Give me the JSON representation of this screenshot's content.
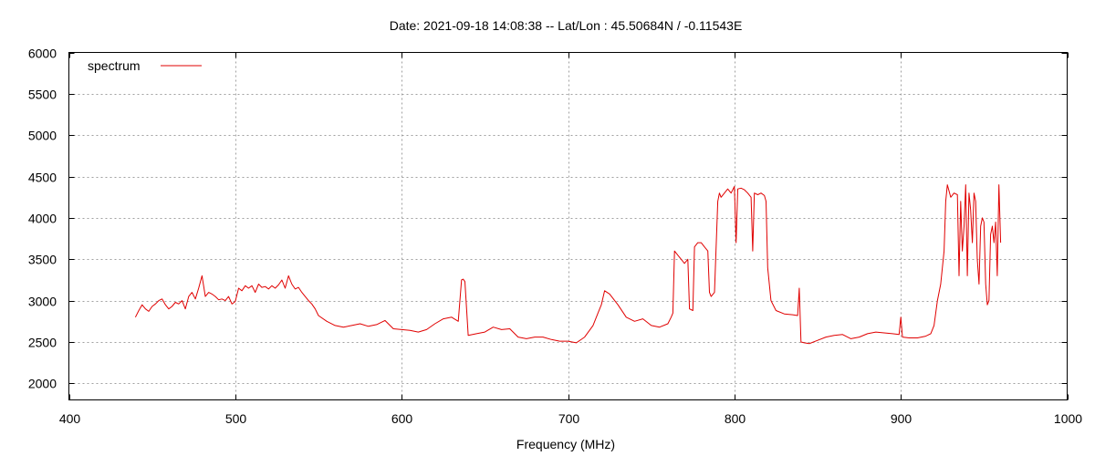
{
  "chart_data": {
    "type": "line",
    "title": "Date: 2021-09-18 14:08:38  --  Lat/Lon : 45.50684N / -0.11543E",
    "xlabel": "Frequency (MHz)",
    "ylabel": "",
    "xlim": [
      400,
      1000
    ],
    "ylim": [
      1800,
      6000
    ],
    "x_ticks": [
      400,
      500,
      600,
      700,
      800,
      900,
      1000
    ],
    "y_ticks": [
      2000,
      2500,
      3000,
      3500,
      4000,
      4500,
      5000,
      5500,
      6000
    ],
    "grid": true,
    "legend_position": "top-left",
    "series": [
      {
        "name": "spectrum",
        "color": "#e00000",
        "x": [
          440,
          442,
          444,
          446,
          448,
          450,
          452,
          454,
          456,
          458,
          460,
          462,
          464,
          466,
          468,
          470,
          472,
          474,
          476,
          478,
          480,
          482,
          484,
          486,
          488,
          490,
          492,
          494,
          496,
          498,
          500,
          502,
          504,
          506,
          508,
          510,
          512,
          514,
          516,
          518,
          520,
          522,
          524,
          526,
          528,
          530,
          532,
          534,
          536,
          538,
          540,
          542,
          544,
          546,
          548,
          550,
          555,
          560,
          565,
          570,
          575,
          580,
          585,
          590,
          595,
          600,
          605,
          610,
          615,
          620,
          625,
          630,
          634,
          636,
          637,
          638,
          640,
          645,
          650,
          655,
          660,
          665,
          670,
          675,
          680,
          685,
          690,
          695,
          700,
          705,
          710,
          715,
          718,
          720,
          722,
          725,
          730,
          735,
          740,
          745,
          750,
          755,
          760,
          762,
          763,
          764,
          766,
          768,
          770,
          772,
          773,
          775,
          776,
          778,
          780,
          782,
          784,
          785,
          786,
          788,
          790,
          791,
          792,
          794,
          796,
          798,
          800,
          801,
          802,
          804,
          806,
          808,
          810,
          811,
          812,
          814,
          816,
          818,
          819,
          820,
          822,
          825,
          830,
          835,
          838,
          839,
          840,
          842,
          845,
          850,
          855,
          860,
          865,
          870,
          875,
          880,
          885,
          890,
          895,
          899,
          900,
          901,
          905,
          910,
          915,
          918,
          920,
          922,
          924,
          926,
          927,
          928,
          930,
          932,
          934,
          935,
          936,
          937,
          938,
          939,
          940,
          941,
          942,
          943,
          944,
          945,
          946,
          947,
          948,
          949,
          950,
          951,
          952,
          953,
          954,
          955,
          956,
          957,
          958,
          959,
          960
        ],
        "y": [
          2800,
          2880,
          2950,
          2900,
          2870,
          2930,
          2960,
          3000,
          3020,
          2950,
          2900,
          2930,
          2980,
          2960,
          3000,
          2900,
          3050,
          3100,
          3020,
          3150,
          3300,
          3050,
          3100,
          3080,
          3050,
          3010,
          3020,
          3000,
          3050,
          2960,
          2990,
          3150,
          3120,
          3180,
          3150,
          3180,
          3100,
          3200,
          3160,
          3170,
          3140,
          3180,
          3150,
          3190,
          3250,
          3150,
          3300,
          3200,
          3140,
          3160,
          3100,
          3050,
          3000,
          2960,
          2900,
          2820,
          2750,
          2700,
          2680,
          2700,
          2720,
          2690,
          2710,
          2760,
          2660,
          2650,
          2640,
          2620,
          2650,
          2720,
          2780,
          2800,
          2750,
          3250,
          3260,
          3230,
          2580,
          2600,
          2620,
          2680,
          2650,
          2660,
          2560,
          2540,
          2560,
          2560,
          2530,
          2510,
          2510,
          2490,
          2560,
          2700,
          2850,
          2950,
          3120,
          3080,
          2950,
          2800,
          2750,
          2780,
          2700,
          2680,
          2720,
          2800,
          2850,
          3600,
          3550,
          3500,
          3450,
          3500,
          2900,
          2880,
          3650,
          3700,
          3700,
          3650,
          3600,
          3100,
          3050,
          3100,
          4200,
          4300,
          4250,
          4300,
          4350,
          4300,
          4380,
          3700,
          4350,
          4360,
          4340,
          4300,
          4250,
          3600,
          4300,
          4280,
          4300,
          4270,
          4200,
          3400,
          3000,
          2880,
          2840,
          2830,
          2820,
          3150,
          2500,
          2490,
          2480,
          2520,
          2560,
          2580,
          2590,
          2540,
          2560,
          2600,
          2620,
          2610,
          2600,
          2590,
          2800,
          2560,
          2550,
          2550,
          2570,
          2600,
          2700,
          3000,
          3200,
          3600,
          4200,
          4400,
          4250,
          4300,
          4280,
          3300,
          4200,
          3600,
          3900,
          4400,
          3300,
          4300,
          4100,
          3700,
          4300,
          4200,
          3500,
          3200,
          3900,
          4000,
          3950,
          3200,
          2950,
          3000,
          3800,
          3900,
          3700,
          3950,
          3300,
          4400,
          3700
        ]
      }
    ]
  }
}
